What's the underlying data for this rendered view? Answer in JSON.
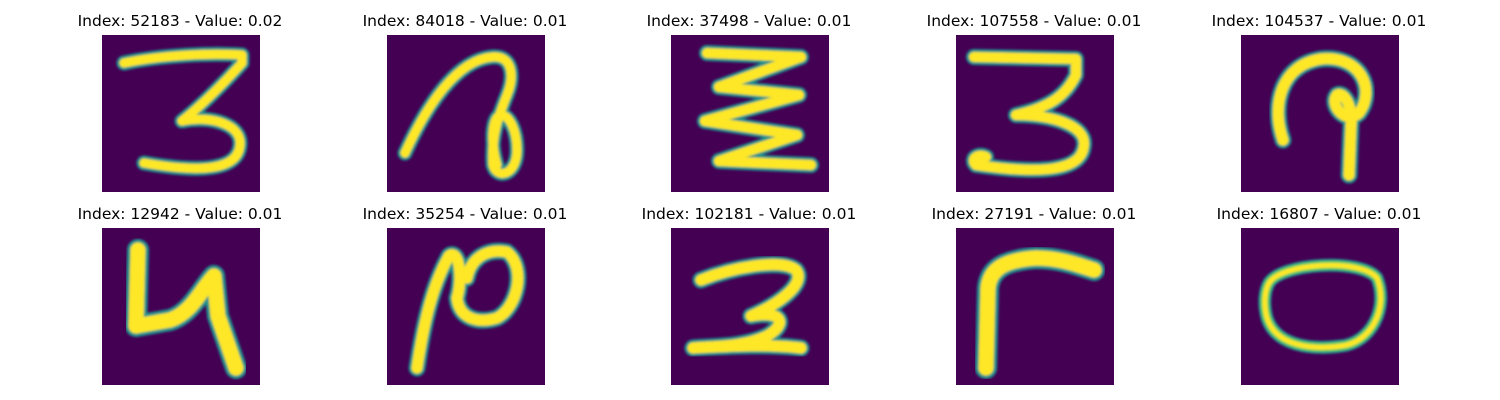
{
  "figure": {
    "colormap": {
      "low": "#440154",
      "edge": "#21918c",
      "mid": "#5ec962",
      "high": "#fde725"
    },
    "panels": [
      {
        "title": "Index: 52183 - Value: 0.02",
        "glyph": "digit-3-icon"
      },
      {
        "title": "Index: 84018 - Value: 0.01",
        "glyph": "loop-stroke-icon"
      },
      {
        "title": "Index: 37498 - Value: 0.01",
        "glyph": "zigzag-stroke-icon"
      },
      {
        "title": "Index: 107558 - Value: 0.01",
        "glyph": "digit-3-icon"
      },
      {
        "title": "Index: 104537 - Value: 0.01",
        "glyph": "hook-stroke-icon"
      },
      {
        "title": "Index: 12942 - Value: 0.01",
        "glyph": "digit-4-icon"
      },
      {
        "title": "Index: 35254 - Value: 0.01",
        "glyph": "n-stroke-icon"
      },
      {
        "title": "Index: 102181 - Value: 0.01",
        "glyph": "digit-2-icon"
      },
      {
        "title": "Index: 27191 - Value: 0.01",
        "glyph": "digit-7-icon"
      },
      {
        "title": "Index: 16807 - Value: 0.01",
        "glyph": "digit-0-icon"
      }
    ]
  }
}
